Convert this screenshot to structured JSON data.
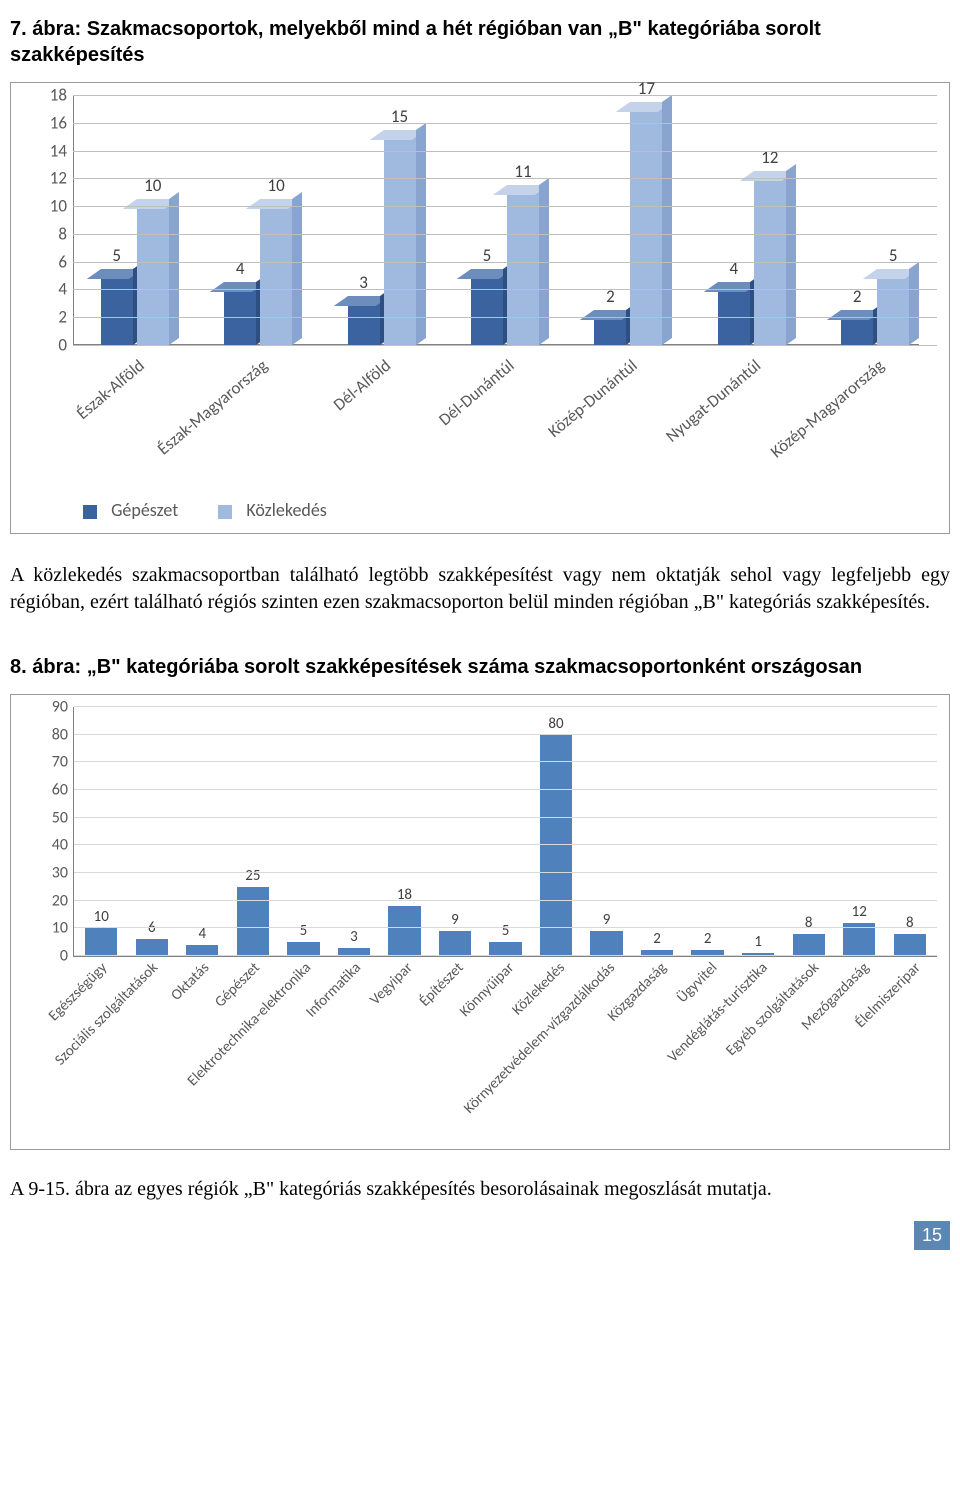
{
  "fig7": {
    "title": "7. ábra: Szakmacsoportok, melyekből mind a hét régióban van „B\" kategóriába sorolt szakképesítés",
    "ylim": [
      0,
      18
    ],
    "yticks": [
      0,
      2,
      4,
      6,
      8,
      10,
      12,
      14,
      16,
      18
    ],
    "colors": {
      "series1_front": "#3a63a0",
      "series1_top": "#6d8ebd",
      "series1_side": "#2e4f82",
      "series2_front": "#9fb9df",
      "series2_top": "#c4d3ea",
      "series2_side": "#88a4cf",
      "grid": "#bfbfbf",
      "axis_text": "#595959",
      "value_text": "#404040"
    },
    "categories": [
      "Észak-Alföld",
      "Észak-Magyarország",
      "Dél-Alföld",
      "Dél-Dunántúl",
      "Közép-Dunántúl",
      "Nyugat-Dunántúl",
      "Közép-Magyarország"
    ],
    "series": [
      {
        "name": "Gépészet",
        "values": [
          5,
          4,
          3,
          5,
          2,
          4,
          2
        ]
      },
      {
        "name": "Közlekedés",
        "values": [
          10,
          10,
          15,
          11,
          17,
          12,
          5
        ]
      }
    ]
  },
  "para_after_fig7": "A közlekedés szakmacsoportban található legtöbb szakképesítést vagy nem oktatják sehol vagy legfeljebb egy régióban, ezért található régiós szinten ezen szakmacsoporton belül minden régióban „B\" kategóriás szakképesítés.",
  "fig8": {
    "title": "8. ábra: „B\" kategóriába sorolt szakképesítések száma szakmacsoportonként országosan",
    "ylim": [
      0,
      90
    ],
    "yticks": [
      0,
      10,
      20,
      30,
      40,
      50,
      60,
      70,
      80,
      90
    ],
    "bar_color": "#4f81bd",
    "grid_color": "#d9d9d9",
    "categories": [
      "Egészségügy",
      "Szociális szolgáltatások",
      "Oktatás",
      "Gépészet",
      "Elektrotechnika-elektronika",
      "Informatika",
      "Vegyipar",
      "Építészet",
      "Könnyűipar",
      "Közlekedés",
      "Környezetvédelem-vízgazdálkodás",
      "Közgazdaság",
      "Ügyvitel",
      "Vendéglátás-turisztika",
      "Egyéb szolgáltatások",
      "Mezőgazdaság",
      "Élelmiszeripar"
    ],
    "values": [
      10,
      6,
      4,
      25,
      5,
      3,
      18,
      9,
      5,
      80,
      9,
      2,
      2,
      1,
      8,
      12,
      8
    ]
  },
  "para_after_fig8": "A 9-15. ábra az egyes régiók „B\" kategóriás szakképesítés besorolásainak megoszlását mutatja.",
  "page_number": "15",
  "typography": {
    "title_font": "Arial bold",
    "title_fontsize_pt": 15,
    "body_font": "Times New Roman",
    "body_fontsize_pt": 15,
    "chart_label_font": "Calibri",
    "chart_label_fontsize_pt": 12
  }
}
